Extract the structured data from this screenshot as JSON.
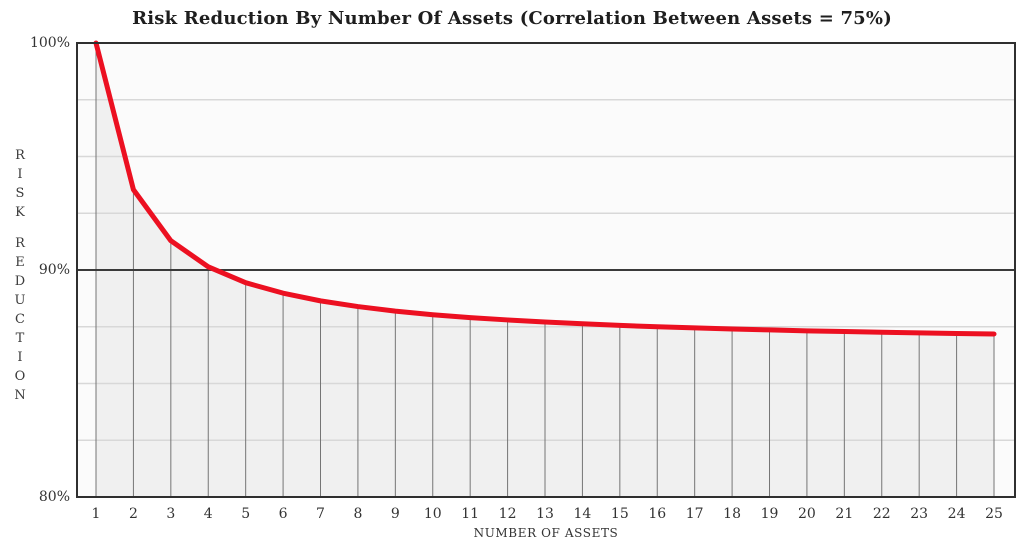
{
  "title": "Risk Reduction By Number Of Assets (Correlation Between Assets = 75%)",
  "colors": {
    "line": "#ec1021",
    "area_fill": "#f0f0f0",
    "plot_background": "#fbfbfb",
    "gridline": "#d8d8d8",
    "emphasized_gridline": "#3a3a3a",
    "drop_line": "#757575",
    "border": "#2f2f2f",
    "text": "#333333"
  },
  "chart_data": {
    "type": "line",
    "title": "Risk Reduction By Number Of Assets (Correlation Between Assets = 75%)",
    "xlabel": "NUMBER OF ASSETS",
    "ylabel": "RISK REDUCTION",
    "x": [
      1,
      2,
      3,
      4,
      5,
      6,
      7,
      8,
      9,
      10,
      11,
      12,
      13,
      14,
      15,
      16,
      17,
      18,
      19,
      20,
      21,
      22,
      23,
      24,
      25
    ],
    "values": [
      100,
      93.54,
      91.29,
      90.14,
      89.44,
      88.98,
      88.64,
      88.39,
      88.19,
      88.03,
      87.9,
      87.8,
      87.71,
      87.63,
      87.56,
      87.5,
      87.45,
      87.4,
      87.36,
      87.32,
      87.29,
      87.26,
      87.23,
      87.2,
      87.18
    ],
    "xlim": [
      1,
      25
    ],
    "ylim": [
      80,
      100
    ],
    "x_tick_labels": [
      "1",
      "2",
      "3",
      "4",
      "5",
      "6",
      "7",
      "8",
      "9",
      "10",
      "11",
      "12",
      "13",
      "14",
      "15",
      "16",
      "17",
      "18",
      "19",
      "20",
      "21",
      "22",
      "23",
      "24",
      "25"
    ],
    "y_ticks": [
      {
        "value": 100,
        "label": "100%"
      },
      {
        "value": 90,
        "label": "90%"
      },
      {
        "value": 80,
        "label": "80%"
      }
    ],
    "y_gridline_step": 2.5,
    "emphasized_y_gridline": 90,
    "grid": true,
    "legend": "none",
    "drop_lines_at_each_x": true,
    "area_fill_under_curve": true
  }
}
